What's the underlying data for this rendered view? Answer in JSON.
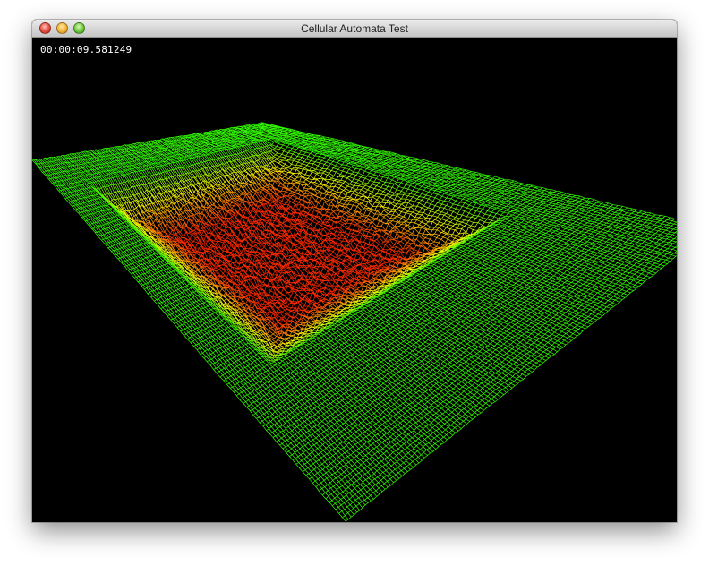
{
  "window": {
    "title": "Cellular Automata Test",
    "controls": [
      "close",
      "minimize",
      "zoom"
    ]
  },
  "overlay": {
    "elapsed_time": "00:00:09.581249"
  },
  "scene": {
    "render_mode": "wireframe",
    "colors": {
      "background": "#000000",
      "flat": "#33ff00",
      "mid": "#ffff00",
      "peak": "#ff2a00"
    }
  }
}
